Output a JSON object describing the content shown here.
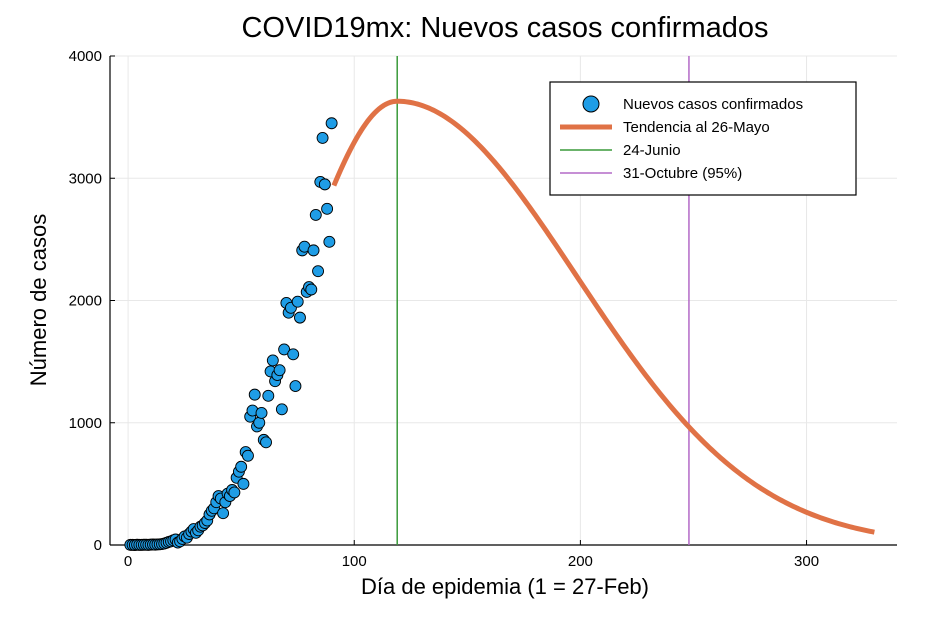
{
  "chart_data": {
    "type": "scatter",
    "title": "COVID19mx: Nuevos casos confirmados",
    "xlabel": "Día de epidemia (1 = 27-Feb)",
    "ylabel": "Número de casos",
    "xlim": [
      -8,
      340
    ],
    "ylim": [
      0,
      4000
    ],
    "xticks": [
      0,
      100,
      200,
      300
    ],
    "yticks": [
      0,
      1000,
      2000,
      3000,
      4000
    ],
    "grid": true,
    "legend_position": "top-right",
    "colors": {
      "points": "#1f9de6",
      "trend": "#e07246",
      "vline1": "#3a9a3a",
      "vline2": "#b36ac7"
    },
    "series": [
      {
        "name": "Nuevos casos confirmados",
        "kind": "scatter",
        "x": [
          1,
          2,
          3,
          4,
          5,
          6,
          7,
          8,
          9,
          10,
          11,
          12,
          13,
          14,
          15,
          16,
          17,
          18,
          19,
          20,
          21,
          22,
          23,
          24,
          25,
          26,
          27,
          28,
          29,
          30,
          31,
          32,
          33,
          34,
          35,
          36,
          37,
          38,
          39,
          40,
          41,
          42,
          43,
          44,
          45,
          46,
          47,
          48,
          49,
          50,
          51,
          52,
          53,
          54,
          55,
          56,
          57,
          58,
          59,
          60,
          61,
          62,
          63,
          64,
          65,
          66,
          67,
          68,
          69,
          70,
          71,
          72,
          73,
          74,
          75,
          76,
          77,
          78,
          79,
          80,
          81,
          82,
          83,
          84,
          85,
          86,
          87,
          88,
          89,
          90
        ],
        "y": [
          1,
          1,
          0,
          2,
          1,
          1,
          2,
          2,
          1,
          3,
          4,
          3,
          5,
          6,
          8,
          12,
          18,
          25,
          30,
          38,
          45,
          20,
          30,
          50,
          70,
          60,
          90,
          110,
          130,
          100,
          120,
          150,
          160,
          180,
          200,
          250,
          280,
          300,
          350,
          400,
          380,
          260,
          350,
          420,
          400,
          450,
          430,
          550,
          600,
          640,
          500,
          760,
          730,
          1050,
          1100,
          1230,
          970,
          1000,
          1080,
          860,
          840,
          1220,
          1420,
          1510,
          1340,
          1390,
          1430,
          1110,
          1600,
          1980,
          1900,
          1940,
          1560,
          1300,
          1990,
          1860,
          2410,
          2440,
          2070,
          2110,
          2090,
          2410,
          2700,
          2240,
          2970,
          3330,
          2950,
          2750,
          2480,
          3450
        ]
      },
      {
        "name": "Tendencia al 26-Mayo",
        "kind": "line",
        "peak": {
          "x": 119,
          "y": 3630
        },
        "start": {
          "x": 91,
          "y": 2940
        },
        "end": {
          "x": 330,
          "y": 105
        },
        "note": ""
      },
      {
        "name": "24-Junio",
        "kind": "vline",
        "x": 119
      },
      {
        "name": "31-Octubre (95%)",
        "kind": "vline",
        "x": 248
      }
    ]
  }
}
